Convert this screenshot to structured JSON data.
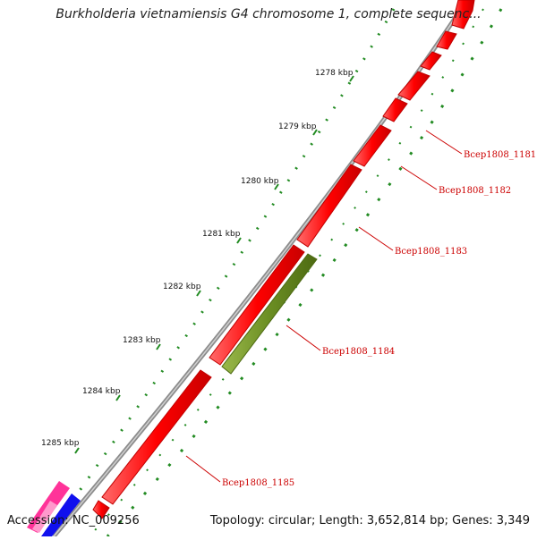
{
  "title": "Burkholderia vietnamiensis G4 chromosome 1, complete sequenc...",
  "footer": {
    "accession": "Accession: NC_009256",
    "summary": "Topology: circular; Length: 3,652,814 bp; Genes: 3,349"
  },
  "ticks": [
    "1278 kbp",
    "1279 kbp",
    "1280 kbp",
    "1281 kbp",
    "1282 kbp",
    "1283 kbp",
    "1284 kbp",
    "1285 kbp"
  ],
  "genes": [
    "Bcep1808_1181",
    "Bcep1808_1182",
    "Bcep1808_1183",
    "Bcep1808_1184",
    "Bcep1808_1185"
  ],
  "colors": {
    "backbone": "#8c8c8c",
    "forward_gene": "#ff0000",
    "reverse_gene": "#6b8e23",
    "gc_dots": "#228b22",
    "label": "#cc0000",
    "pink_gene": "#ff3399",
    "blue_gene": "#1010ee"
  }
}
